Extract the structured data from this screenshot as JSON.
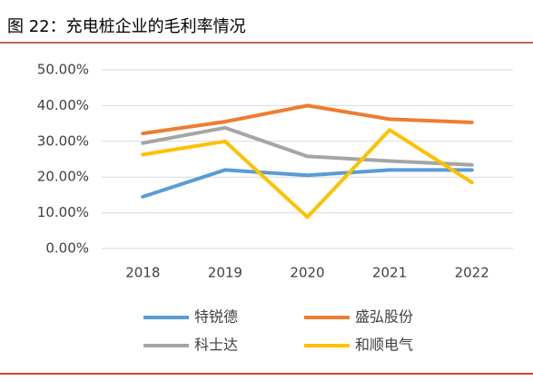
{
  "chart_data": {
    "type": "line",
    "title": "图 22：充电桩企业的毛利率情况",
    "categories": [
      "2018",
      "2019",
      "2020",
      "2021",
      "2022"
    ],
    "series": [
      {
        "name": "特锐德",
        "color": "#5b9bd5",
        "values": [
          14.5,
          22,
          20.5,
          22,
          22
        ]
      },
      {
        "name": "盛弘股份",
        "color": "#ed7d31",
        "values": [
          32.2,
          35.5,
          40,
          36.2,
          35.3
        ]
      },
      {
        "name": "科士达",
        "color": "#a5a5a5",
        "values": [
          29.5,
          33.8,
          25.8,
          24.5,
          23.4
        ]
      },
      {
        "name": "和顺电气",
        "color": "#ffc000",
        "values": [
          26.3,
          30,
          8.8,
          33.2,
          18.5
        ]
      }
    ],
    "ylim": [
      0,
      50
    ],
    "yticks": [
      {
        "value": 0,
        "label": "0.00%"
      },
      {
        "value": 10,
        "label": "10.00%"
      },
      {
        "value": 20,
        "label": "20.00%"
      },
      {
        "value": 30,
        "label": "30.00%"
      },
      {
        "value": 40,
        "label": "40.00%"
      },
      {
        "value": 50,
        "label": "50.00%"
      }
    ],
    "grid": true
  }
}
